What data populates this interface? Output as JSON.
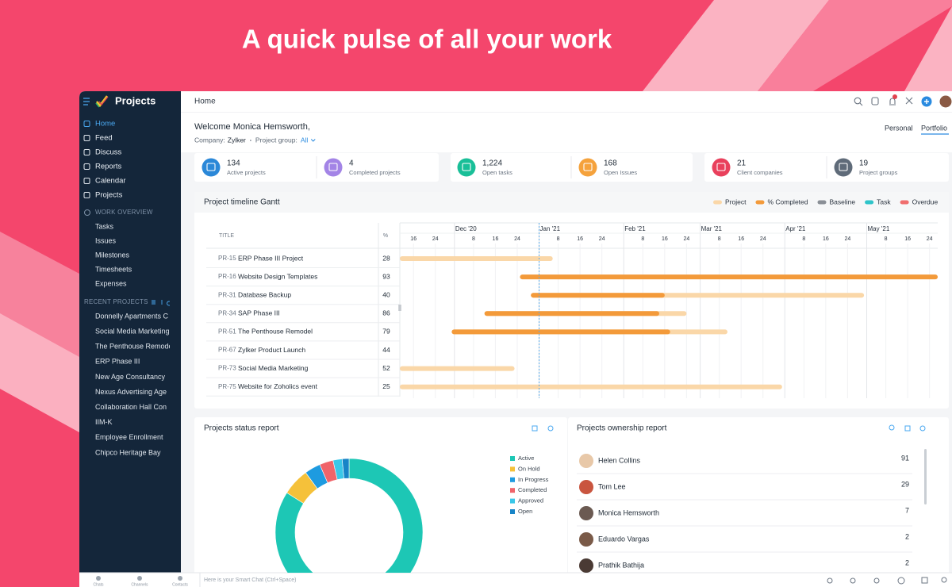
{
  "headline": "A quick pulse of all your work",
  "sidebar": {
    "brand": "Projects",
    "nav": [
      "Home",
      "Feed",
      "Discuss",
      "Reports",
      "Calendar",
      "Projects"
    ],
    "work_overview": {
      "title": "WORK OVERVIEW",
      "items": [
        "Tasks",
        "Issues",
        "Milestones",
        "Timesheets",
        "Expenses"
      ]
    },
    "recent_projects": {
      "title": "RECENT PROJECTS",
      "items": [
        "Donnelly Apartments C",
        "Social Media Marketing",
        "The Penthouse Remode",
        "ERP Phase III",
        "New Age Consultancy",
        "Nexus Advertising Age",
        "Collaboration Hall Con",
        "IIM-K",
        "Employee Enrollment",
        "Chipco Heritage Bay"
      ]
    }
  },
  "topbar": {
    "title": "Home"
  },
  "welcome": {
    "greeting": "Welcome Monica Hemsworth,",
    "company_label": "Company:",
    "company": "Zylker",
    "group_label": "Project group:",
    "group": "All",
    "tabs": [
      "Personal",
      "Portfolio"
    ]
  },
  "stats": [
    {
      "value": 134,
      "label": "Active projects",
      "color": "#2b88d8"
    },
    {
      "value": 4,
      "label": "Completed projects",
      "color": "#a384e6"
    },
    {
      "value": "1,224",
      "label": "Open tasks",
      "color": "#19bf98"
    },
    {
      "value": 168,
      "label": "Open Issues",
      "color": "#f5a23c"
    },
    {
      "value": 21,
      "label": "Client companies",
      "color": "#e9405c"
    },
    {
      "value": 19,
      "label": "Project groups",
      "color": "#5f6b79"
    }
  ],
  "chart_data": [
    {
      "type": "gantt",
      "title": "Project timeline Gantt",
      "legend": [
        {
          "name": "Project",
          "color": "#fad7a8"
        },
        {
          "name": "% Completed",
          "color": "#f39a3a"
        },
        {
          "name": "Baseline",
          "color": "#8a8f96"
        },
        {
          "name": "Task",
          "color": "#2fc4c9"
        },
        {
          "name": "Overdue",
          "color": "#f06e6e"
        }
      ],
      "columns": [
        "TITLE",
        "%"
      ],
      "xlim": [
        "2020-11-11",
        "2021-05-27"
      ],
      "month_ticks": [
        {
          "value": "2020-12-01",
          "label": "Dec '20"
        },
        {
          "value": "2021-01-01",
          "label": "Jan '21"
        },
        {
          "value": "2021-02-01",
          "label": "Feb '21"
        },
        {
          "value": "2021-03-01",
          "label": "Mar '21"
        },
        {
          "value": "2021-04-01",
          "label": "Apr '21"
        },
        {
          "value": "2021-05-01",
          "label": "May '21"
        }
      ],
      "day_ticks": [
        {
          "value": "2020-11-16",
          "label": "16"
        },
        {
          "value": "2020-11-24",
          "label": "24"
        },
        {
          "value": "2020-12-08",
          "label": "8"
        },
        {
          "value": "2020-12-16",
          "label": "16"
        },
        {
          "value": "2020-12-24",
          "label": "24"
        },
        {
          "value": "2021-01-08",
          "label": "8"
        },
        {
          "value": "2021-01-16",
          "label": "16"
        },
        {
          "value": "2021-01-24",
          "label": "24"
        },
        {
          "value": "2021-02-08",
          "label": "8"
        },
        {
          "value": "2021-02-16",
          "label": "16"
        },
        {
          "value": "2021-02-24",
          "label": "24"
        },
        {
          "value": "2021-03-08",
          "label": "8"
        },
        {
          "value": "2021-03-16",
          "label": "16"
        },
        {
          "value": "2021-03-24",
          "label": "24"
        },
        {
          "value": "2021-04-08",
          "label": "8"
        },
        {
          "value": "2021-04-16",
          "label": "16"
        },
        {
          "value": "2021-04-24",
          "label": "24"
        },
        {
          "value": "2021-05-08",
          "label": "8"
        },
        {
          "value": "2021-05-16",
          "label": "16"
        },
        {
          "value": "2021-05-24",
          "label": "24"
        }
      ],
      "today": "2021-01-01",
      "rows": [
        {
          "id": "PR-15",
          "name": "ERP Phase III Project",
          "percent": 28,
          "project": [
            "2020-11-11",
            "2021-01-06"
          ],
          "completed": null
        },
        {
          "id": "PR-16",
          "name": "Website Design Templates",
          "percent": 93,
          "project": null,
          "completed": [
            "2020-12-25",
            "2021-05-27"
          ]
        },
        {
          "id": "PR-31",
          "name": "Database Backup",
          "percent": 40,
          "project": [
            "2020-12-29",
            "2021-04-30"
          ],
          "completed": [
            "2020-12-29",
            "2021-02-16"
          ]
        },
        {
          "id": "PR-34",
          "name": "SAP Phase III",
          "percent": 86,
          "project": [
            "2020-12-12",
            "2021-02-24"
          ],
          "completed": [
            "2020-12-12",
            "2021-02-14"
          ]
        },
        {
          "id": "PR-51",
          "name": "The Penthouse Remodel",
          "percent": 79,
          "project": [
            "2020-11-30",
            "2021-03-11"
          ],
          "completed": [
            "2020-11-30",
            "2021-02-18"
          ]
        },
        {
          "id": "PR-67",
          "name": "Zylker Product Launch",
          "percent": 44,
          "project": null,
          "completed": null
        },
        {
          "id": "PR-73",
          "name": "Social Media Marketing",
          "percent": 52,
          "project": [
            "2020-11-11",
            "2020-12-23"
          ],
          "completed": null
        },
        {
          "id": "PR-75",
          "name": "Website for Zoholics event",
          "percent": 25,
          "project": [
            "2020-11-11",
            "2021-03-31"
          ],
          "completed": null
        }
      ]
    },
    {
      "type": "pie",
      "title": "Projects status report",
      "categories": [
        "Active",
        "On Hold",
        "In Progress",
        "Completed",
        "Approved",
        "Open"
      ],
      "values": [
        84,
        6,
        3.5,
        3,
        2,
        1.5
      ],
      "colors": [
        "#1dc7b5",
        "#f5c13a",
        "#1e9be0",
        "#f0646a",
        "#3ac7e8",
        "#1784c7"
      ]
    }
  ],
  "ownership_report": {
    "title": "Projects ownership report",
    "rows": [
      {
        "name": "Helen Collins",
        "count": 91,
        "avatar": "#e8c8a8"
      },
      {
        "name": "Tom Lee",
        "count": 29,
        "avatar": "#c9553f"
      },
      {
        "name": "Monica Hemsworth",
        "count": 7,
        "avatar": "#6b5a52"
      },
      {
        "name": "Eduardo Vargas",
        "count": 2,
        "avatar": "#7a5a48"
      },
      {
        "name": "Prathik Bathija",
        "count": 2,
        "avatar": "#4a3a34"
      }
    ]
  },
  "bottom_bar": {
    "items": [
      "Chats",
      "Channels",
      "Contacts"
    ],
    "placeholder": "Here is your Smart Chat (Ctrl+Space)"
  }
}
